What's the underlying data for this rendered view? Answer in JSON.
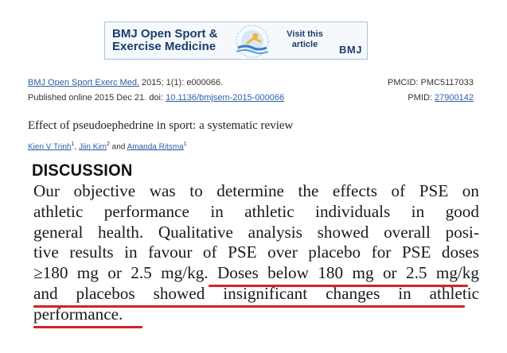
{
  "banner": {
    "title_line1": "BMJ Open Sport &",
    "title_line2": "Exercise Medicine",
    "visit_line1": "Visit this",
    "visit_line2": "article",
    "brand": "BMJ",
    "accent": "#1c3d6e"
  },
  "citation": {
    "journal": "BMJ Open Sport Exerc Med.",
    "details": " 2015; 1(1): e000066.",
    "pmcid_label": "PMCID: ",
    "pmcid": "PMC5117033",
    "published": "Published online 2015 Dec 21. doi: ",
    "doi": "10.1136/bmjsem-2015-000066",
    "pmid_label": "PMID: ",
    "pmid": "27900142"
  },
  "article": {
    "title": "Effect of pseudoephedrine in sport: a systematic review",
    "authors": [
      {
        "name": "Kien V Trinh",
        "sup": "1",
        "sep": ", "
      },
      {
        "name": "Jiin Kim",
        "sup": "2",
        "sep": " and "
      },
      {
        "name": "Amanda Ritsma",
        "sup": "1",
        "sep": ""
      }
    ]
  },
  "excerpt": {
    "heading": "DISCUSSION",
    "lines": [
      "Our objective was to determine the effects of PSE on",
      "athletic performance in athletic individuals in good",
      "general health. Qualitative analysis showed overall posi-",
      "tive results in favour of PSE over placebo for PSE doses",
      "≥180 mg or 2.5 mg/kg. Doses below 180 mg or 2.5 mg/kg",
      "and placebos showed insignificant changes in athletic",
      "performance."
    ],
    "highlight_color": "#d2232a"
  }
}
